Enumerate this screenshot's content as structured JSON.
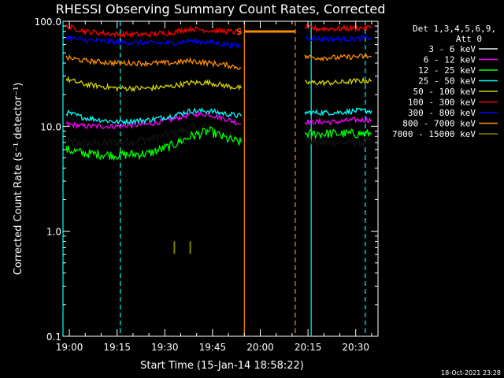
{
  "chart_data": {
    "type": "line",
    "title": "RHESSI Observing Summary Count Rates, Corrected",
    "xlabel": "Start Time (15-Jan-14 18:58:22)",
    "ylabel": "Corrected Count Rate (s⁻¹ detector⁻¹)",
    "y_scale": "log",
    "ylim": [
      0.1,
      100.0
    ],
    "xlim": [
      "18:58",
      "20:37"
    ],
    "x_ticks": [
      "19:00",
      "19:15",
      "19:30",
      "19:45",
      "20:00",
      "20:15",
      "20:30"
    ],
    "y_ticks": [
      "0.1",
      "1.0",
      "10.0",
      "100.0"
    ],
    "legend_header": [
      "Det 1,3,4,5,6,9,",
      "Att 0"
    ],
    "legend_placement": "right",
    "footer_date": "18-Oct-2021 23:28",
    "gap": [
      "19:55",
      "20:12"
    ],
    "vertical_markers": [
      {
        "time": "18:58",
        "color": "#00ffff",
        "style": "solid"
      },
      {
        "time": "19:16",
        "color": "#00ffff",
        "style": "dashed"
      },
      {
        "time": "19:55",
        "color": "#ff8c00",
        "style": "solid"
      },
      {
        "time": "20:11",
        "color": "#ff8c00",
        "style": "dashed"
      },
      {
        "time": "20:16",
        "color": "#00ffff",
        "style": "solid"
      },
      {
        "time": "20:33",
        "color": "#00ffff",
        "style": "dashed"
      }
    ],
    "flag_letters": [
      {
        "label": "S",
        "time": "19:53",
        "color": "#ff8c00"
      }
    ],
    "series": [
      {
        "name": "3 - 6 keV",
        "color": "#000000",
        "x": [
          "18:59",
          "19:05",
          "19:15",
          "19:25",
          "19:32",
          "19:38",
          "19:44",
          "19:50",
          "19:54",
          "20:14",
          "20:18",
          "20:24",
          "20:30",
          "20:35"
        ],
        "values": [
          7.2,
          6.8,
          7.0,
          7.5,
          8.5,
          9.5,
          10.0,
          8.5,
          7.5,
          7.5,
          7.0,
          7.0,
          7.0,
          7.0
        ]
      },
      {
        "name": "6 - 12 keV",
        "color": "#ff00ff",
        "x": [
          "18:59",
          "19:05",
          "19:15",
          "19:25",
          "19:32",
          "19:38",
          "19:44",
          "19:50",
          "19:54",
          "20:14",
          "20:18",
          "20:24",
          "20:30",
          "20:35"
        ],
        "values": [
          10.5,
          10.0,
          10.0,
          10.5,
          11.5,
          13.0,
          13.0,
          11.5,
          10.5,
          11.0,
          11.0,
          11.0,
          11.5,
          11.5
        ]
      },
      {
        "name": "12 - 25 keV",
        "color": "#00ff00",
        "x": [
          "18:59",
          "19:05",
          "19:15",
          "19:25",
          "19:32",
          "19:38",
          "19:44",
          "19:50",
          "19:54",
          "20:14",
          "20:18",
          "20:24",
          "20:30",
          "20:35"
        ],
        "values": [
          6.0,
          5.5,
          5.3,
          5.5,
          6.5,
          8.0,
          9.0,
          7.5,
          7.0,
          8.5,
          8.5,
          8.5,
          8.5,
          8.5
        ]
      },
      {
        "name": "25 - 50 keV",
        "color": "#00ffff",
        "x": [
          "18:59",
          "19:05",
          "19:15",
          "19:25",
          "19:32",
          "19:38",
          "19:44",
          "19:50",
          "19:54",
          "20:14",
          "20:18",
          "20:24",
          "20:30",
          "20:35"
        ],
        "values": [
          13.5,
          12.0,
          11.0,
          11.5,
          12.5,
          14.0,
          14.0,
          13.0,
          12.5,
          13.5,
          13.5,
          13.5,
          14.0,
          14.0
        ]
      },
      {
        "name": "50 - 100 keV",
        "color": "#d4d400",
        "x": [
          "18:59",
          "19:05",
          "19:15",
          "19:25",
          "19:32",
          "19:38",
          "19:44",
          "19:50",
          "19:54",
          "20:14",
          "20:18",
          "20:24",
          "20:30",
          "20:35"
        ],
        "values": [
          28,
          25,
          23,
          23,
          24,
          26,
          26,
          24,
          23,
          26,
          26,
          26,
          27,
          27
        ]
      },
      {
        "name": "100 - 300 keV",
        "color": "#ff0000",
        "x": [
          "18:59",
          "19:05",
          "19:15",
          "19:25",
          "19:32",
          "19:38",
          "19:44",
          "19:50",
          "19:54",
          "20:14",
          "20:18",
          "20:24",
          "20:30",
          "20:35"
        ],
        "values": [
          90,
          80,
          75,
          75,
          78,
          85,
          82,
          80,
          78,
          88,
          85,
          85,
          86,
          88
        ]
      },
      {
        "name": "300 - 800 keV",
        "color": "#0000ff",
        "x": [
          "18:59",
          "19:05",
          "19:15",
          "19:25",
          "19:32",
          "19:38",
          "19:44",
          "19:50",
          "19:54",
          "20:14",
          "20:18",
          "20:24",
          "20:30",
          "20:35"
        ],
        "values": [
          70,
          66,
          63,
          62,
          62,
          65,
          63,
          60,
          58,
          70,
          68,
          68,
          68,
          70
        ]
      },
      {
        "name": "800 - 7000 keV",
        "color": "#ff8c00",
        "x": [
          "18:59",
          "19:05",
          "19:15",
          "19:25",
          "19:32",
          "19:38",
          "19:44",
          "19:50",
          "19:54",
          "20:14",
          "20:18",
          "20:24",
          "20:30",
          "20:35"
        ],
        "values": [
          45,
          42,
          40,
          40,
          40,
          42,
          40,
          38,
          36,
          46,
          45,
          45,
          46,
          46
        ]
      },
      {
        "name": "7000 - 15000 keV",
        "color": "#808000",
        "x": [
          "19:33",
          "19:38"
        ],
        "values": [
          0.7,
          0.7
        ]
      }
    ]
  }
}
